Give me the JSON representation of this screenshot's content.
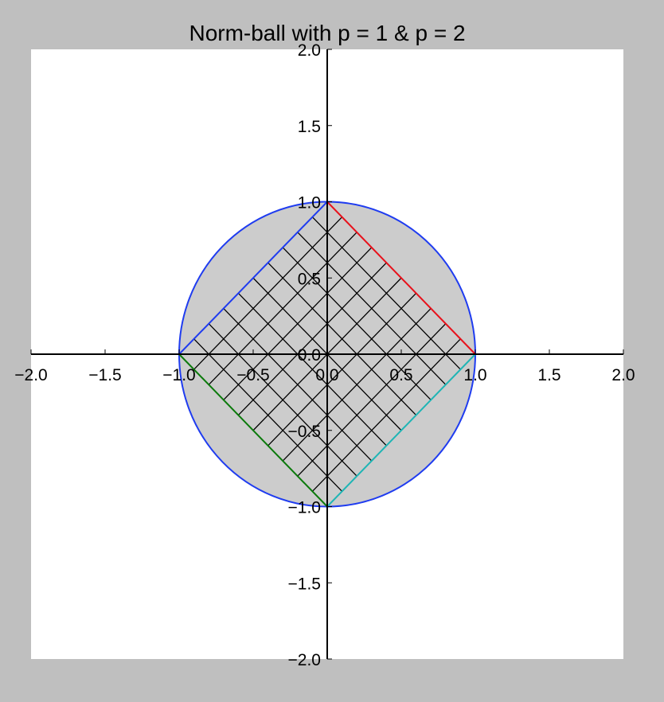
{
  "chart_data": {
    "type": "line",
    "title": "Norm-ball with p = 1 & p = 2",
    "xlabel": "",
    "ylabel": "",
    "xlim": [
      -2.0,
      2.0
    ],
    "ylim": [
      -2.0,
      2.0
    ],
    "grid": false,
    "spines": "centered",
    "x_ticks": [
      -2.0,
      -1.5,
      -1.0,
      -0.5,
      0.0,
      0.5,
      1.0,
      1.5,
      2.0
    ],
    "x_tick_labels": [
      "−2.0",
      "−1.5",
      "−1.0",
      "−0.5",
      "0.0",
      "0.5",
      "1.0",
      "1.5",
      "2.0"
    ],
    "y_ticks": [
      2.0,
      1.5,
      1.0,
      0.5,
      0.0,
      -0.5,
      -1.0,
      -1.5,
      -2.0
    ],
    "y_tick_labels": [
      "2.0",
      "1.5",
      "1.0",
      "0.5",
      "0.0",
      "−0.5",
      "−1.0",
      "−1.5",
      "−2.0"
    ],
    "shapes": [
      {
        "kind": "circle",
        "name": "",
        "center": [
          0,
          0
        ],
        "radius": 1.0,
        "stroke": "#1f3cf0",
        "fill": "#cccccc"
      },
      {
        "kind": "diamond",
        "name": "",
        "vertices": [
          [
            1,
            0
          ],
          [
            0,
            1
          ],
          [
            -1,
            0
          ],
          [
            0,
            -1
          ]
        ],
        "hatch": "grid",
        "hatch_color": "#000000",
        "hatch_spacing": 0.2
      }
    ],
    "series": [
      {
        "name": "",
        "color": "#e8111b",
        "x": [
          0,
          1
        ],
        "y": [
          1,
          0
        ]
      },
      {
        "name": "",
        "color": "#1f3cf0",
        "x": [
          -1,
          0
        ],
        "y": [
          0,
          1
        ]
      },
      {
        "name": "",
        "color": "#0b7a0b",
        "x": [
          -1,
          0
        ],
        "y": [
          0,
          -1
        ]
      },
      {
        "name": "",
        "color": "#1fb5b5",
        "x": [
          0,
          1
        ],
        "y": [
          -1,
          0
        ]
      }
    ]
  }
}
